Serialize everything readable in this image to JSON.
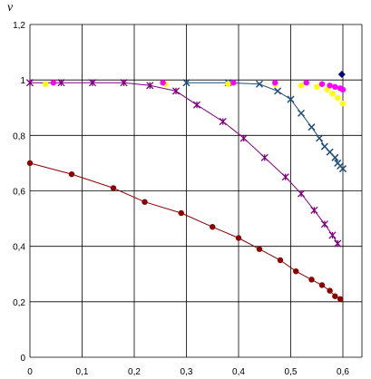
{
  "chart_data": {
    "type": "scatter",
    "ylabel": "v",
    "xlabel": "",
    "xlim": [
      0,
      0.6
    ],
    "ylim": [
      0,
      1.2
    ],
    "grid": true,
    "x_ticks": [
      0,
      0.1,
      0.2,
      0.3,
      0.4,
      0.5,
      0.6
    ],
    "x_tick_labels": [
      "0",
      "0,1",
      "0,2",
      "0,3",
      "0,4",
      "0,5",
      "0,6"
    ],
    "y_ticks": [
      0,
      0.2,
      0.4,
      0.6,
      0.8,
      1.0,
      1.2
    ],
    "y_tick_labels": [
      "0",
      "0,2",
      "0,4",
      "0,6",
      "0,8",
      "1",
      "1,2"
    ],
    "series": [
      {
        "marker": "circle",
        "color": "#8B0000",
        "line": true,
        "points": [
          [
            0.0,
            0.7
          ],
          [
            0.08,
            0.66
          ],
          [
            0.16,
            0.61
          ],
          [
            0.22,
            0.56
          ],
          [
            0.29,
            0.52
          ],
          [
            0.35,
            0.47
          ],
          [
            0.4,
            0.43
          ],
          [
            0.44,
            0.39
          ],
          [
            0.48,
            0.35
          ],
          [
            0.51,
            0.31
          ],
          [
            0.54,
            0.28
          ],
          [
            0.56,
            0.26
          ],
          [
            0.575,
            0.24
          ],
          [
            0.585,
            0.22
          ],
          [
            0.595,
            0.21
          ]
        ]
      },
      {
        "marker": "asterisk",
        "color": "#800080",
        "line": true,
        "points": [
          [
            0.0,
            0.99
          ],
          [
            0.06,
            0.99
          ],
          [
            0.12,
            0.99
          ],
          [
            0.18,
            0.99
          ],
          [
            0.23,
            0.98
          ],
          [
            0.28,
            0.96
          ],
          [
            0.32,
            0.91
          ],
          [
            0.37,
            0.85
          ],
          [
            0.41,
            0.79
          ],
          [
            0.45,
            0.72
          ],
          [
            0.49,
            0.65
          ],
          [
            0.52,
            0.59
          ],
          [
            0.545,
            0.53
          ],
          [
            0.565,
            0.48
          ],
          [
            0.58,
            0.44
          ],
          [
            0.59,
            0.41
          ]
        ]
      },
      {
        "marker": "x",
        "color": "#1F4E79",
        "line": true,
        "points": [
          [
            0.3,
            0.99
          ],
          [
            0.38,
            0.99
          ],
          [
            0.44,
            0.985
          ],
          [
            0.475,
            0.96
          ],
          [
            0.5,
            0.93
          ],
          [
            0.52,
            0.88
          ],
          [
            0.54,
            0.83
          ],
          [
            0.555,
            0.79
          ],
          [
            0.565,
            0.76
          ],
          [
            0.575,
            0.74
          ],
          [
            0.585,
            0.72
          ],
          [
            0.59,
            0.7
          ],
          [
            0.595,
            0.69
          ],
          [
            0.6,
            0.68
          ]
        ]
      },
      {
        "marker": "circle",
        "color": "#FFFF00",
        "line": false,
        "points": [
          [
            0.03,
            0.985
          ],
          [
            0.26,
            0.985
          ],
          [
            0.38,
            0.985
          ],
          [
            0.47,
            0.985
          ],
          [
            0.52,
            0.98
          ],
          [
            0.55,
            0.975
          ],
          [
            0.57,
            0.965
          ],
          [
            0.58,
            0.95
          ],
          [
            0.59,
            0.935
          ],
          [
            0.6,
            0.915
          ]
        ]
      },
      {
        "marker": "circle",
        "color": "#FF00FF",
        "line": false,
        "points": [
          [
            0.045,
            0.99
          ],
          [
            0.255,
            0.99
          ],
          [
            0.39,
            0.99
          ],
          [
            0.47,
            0.99
          ],
          [
            0.53,
            0.99
          ],
          [
            0.56,
            0.985
          ],
          [
            0.575,
            0.98
          ],
          [
            0.585,
            0.975
          ],
          [
            0.595,
            0.97
          ],
          [
            0.6,
            0.965
          ]
        ]
      },
      {
        "marker": "diamond",
        "color": "#000080",
        "line": false,
        "points": [
          [
            0.598,
            1.02
          ]
        ]
      }
    ]
  }
}
